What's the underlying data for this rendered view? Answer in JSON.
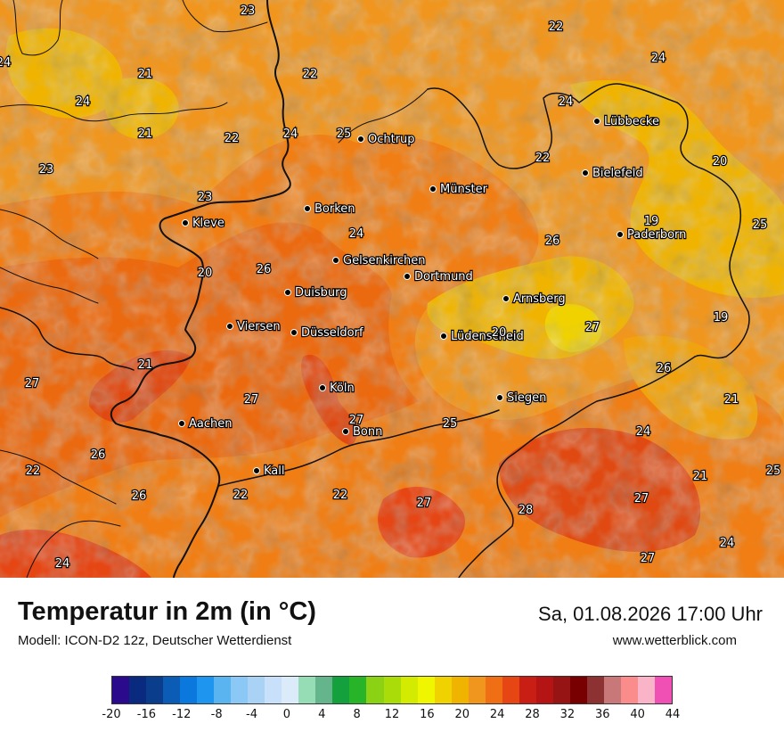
{
  "header": {
    "title": "Temperatur in 2m (in °C)",
    "model": "Modell: ICON-D2 12z, Deutscher Wetterdienst",
    "datetime": "Sa, 01.08.2026 17:00 Uhr",
    "website": "www.wetterblick.com"
  },
  "cities": [
    {
      "name": "Lübbecke"
    },
    {
      "name": "Ochtrup"
    },
    {
      "name": "Bielefeld"
    },
    {
      "name": "Münster"
    },
    {
      "name": "Borken"
    },
    {
      "name": "Kleve"
    },
    {
      "name": "Paderborn"
    },
    {
      "name": "Gelsenkirchen"
    },
    {
      "name": "Dortmund"
    },
    {
      "name": "Duisburg"
    },
    {
      "name": "Arnsberg"
    },
    {
      "name": "Viersen"
    },
    {
      "name": "Düsseldorf"
    },
    {
      "name": "Lüdenscheid"
    },
    {
      "name": "Köln"
    },
    {
      "name": "Siegen"
    },
    {
      "name": "Aachen"
    },
    {
      "name": "Bonn"
    },
    {
      "name": "Kall"
    }
  ],
  "values": [
    "23",
    "22",
    "24",
    "21",
    "24",
    "22",
    "21",
    "22",
    "24",
    "25",
    "24",
    "22",
    "23",
    "24",
    "23",
    "20",
    "19",
    "25",
    "24",
    "26",
    "26",
    "20",
    "20",
    "19",
    "27",
    "21",
    "26",
    "27",
    "21",
    "27",
    "25",
    "24",
    "27",
    "21",
    "25",
    "26",
    "22",
    "22",
    "27",
    "28",
    "27",
    "22",
    "24",
    "27"
  ],
  "colorbar": {
    "colors": [
      "#2c0a8c",
      "#0a2a80",
      "#0a3e8c",
      "#0a5cb4",
      "#0a78dc",
      "#1e96f0",
      "#5ab4f0",
      "#8cc8f5",
      "#aad2f5",
      "#c8e0fa",
      "#dcebfa",
      "#96dcb4",
      "#64b48c",
      "#14a03c",
      "#28b428",
      "#8cd214",
      "#aadc0a",
      "#d2eb00",
      "#f0f500",
      "#f0d200",
      "#f0b400",
      "#f0961e",
      "#f06e14",
      "#e64614",
      "#c81e14",
      "#b41414",
      "#961414",
      "#780000",
      "#8c3232",
      "#c87878",
      "#fa8c8c",
      "#fab4c8",
      "#f050b4"
    ],
    "ticks": [
      "-20",
      "-16",
      "-12",
      "-8",
      "-4",
      "0",
      "4",
      "8",
      "12",
      "16",
      "20",
      "24",
      "28",
      "32",
      "36",
      "40",
      "44"
    ]
  }
}
